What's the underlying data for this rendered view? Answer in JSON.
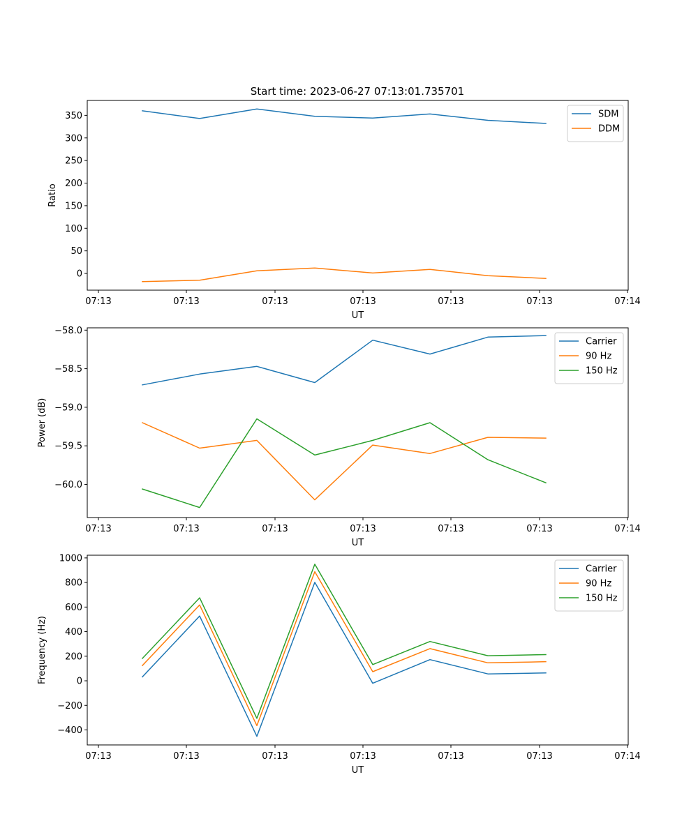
{
  "figure_title": "Start time: 2023-06-27 07:13:01.735701",
  "colors": {
    "blue": "#1f77b4",
    "orange": "#ff7f0e",
    "green": "#2ca02c"
  },
  "chart_data": [
    {
      "type": "line",
      "title": "Start time: 2023-06-27 07:13:01.735701",
      "xlabel": "UT",
      "ylabel": "Ratio",
      "x": [
        1,
        2,
        3,
        4,
        5,
        6,
        7,
        8
      ],
      "x_tick_labels": [
        "07:13",
        "07:13",
        "07:13",
        "07:13",
        "07:13",
        "07:13",
        "07:14"
      ],
      "y_ticks": [
        0,
        50,
        100,
        150,
        200,
        250,
        300,
        350
      ],
      "y_tick_labels": [
        "0",
        "50",
        "100",
        "150",
        "200",
        "250",
        "300",
        "350"
      ],
      "ylim": [
        -37,
        383
      ],
      "legend_position": "upper right",
      "grid": false,
      "series": [
        {
          "name": "SDM",
          "color": "#1f77b4",
          "values": [
            360,
            343,
            364,
            348,
            344,
            353,
            339,
            332
          ]
        },
        {
          "name": "DDM",
          "color": "#ff7f0e",
          "values": [
            -18,
            -15,
            6,
            12,
            1,
            9,
            -5,
            -11
          ]
        }
      ]
    },
    {
      "type": "line",
      "title": "",
      "xlabel": "UT",
      "ylabel": "Power (dB)",
      "x": [
        1,
        2,
        3,
        4,
        5,
        6,
        7,
        8
      ],
      "x_tick_labels": [
        "07:13",
        "07:13",
        "07:13",
        "07:13",
        "07:13",
        "07:13",
        "07:14"
      ],
      "y_ticks": [
        -60.0,
        -59.5,
        -59.0,
        -58.5,
        -58.0
      ],
      "y_tick_labels": [
        "−60.0",
        "−59.5",
        "−59.0",
        "−58.5",
        "−58.0"
      ],
      "ylim": [
        -60.43,
        -57.97
      ],
      "legend_position": "upper right",
      "grid": false,
      "series": [
        {
          "name": "Carrier",
          "color": "#1f77b4",
          "values": [
            -58.71,
            -58.57,
            -58.47,
            -58.68,
            -58.13,
            -58.31,
            -58.09,
            -58.07
          ]
        },
        {
          "name": "90 Hz",
          "color": "#ff7f0e",
          "values": [
            -59.2,
            -59.53,
            -59.43,
            -60.2,
            -59.49,
            -59.6,
            -59.39,
            -59.4
          ]
        },
        {
          "name": "150 Hz",
          "color": "#2ca02c",
          "values": [
            -60.06,
            -60.3,
            -59.15,
            -59.62,
            -59.43,
            -59.2,
            -59.68,
            -59.98
          ]
        }
      ]
    },
    {
      "type": "line",
      "title": "",
      "xlabel": "UT",
      "ylabel": "Frequency (Hz)",
      "x": [
        1,
        2,
        3,
        4,
        5,
        6,
        7,
        8
      ],
      "x_tick_labels": [
        "07:13",
        "07:13",
        "07:13",
        "07:13",
        "07:13",
        "07:13",
        "07:14"
      ],
      "y_ticks": [
        -400,
        -200,
        0,
        200,
        400,
        600,
        800,
        1000
      ],
      "y_tick_labels": [
        "−400",
        "−200",
        "0",
        "200",
        "400",
        "600",
        "800",
        "1000"
      ],
      "ylim": [
        -522,
        1022
      ],
      "legend_position": "upper right",
      "grid": false,
      "series": [
        {
          "name": "Carrier",
          "color": "#1f77b4",
          "values": [
            32,
            527,
            -452,
            801,
            -20,
            172,
            56,
            64
          ]
        },
        {
          "name": "90 Hz",
          "color": "#ff7f0e",
          "values": [
            124,
            617,
            -365,
            888,
            74,
            262,
            146,
            155
          ]
        },
        {
          "name": "150 Hz",
          "color": "#2ca02c",
          "values": [
            182,
            675,
            -306,
            949,
            132,
            320,
            204,
            213
          ]
        }
      ]
    }
  ]
}
